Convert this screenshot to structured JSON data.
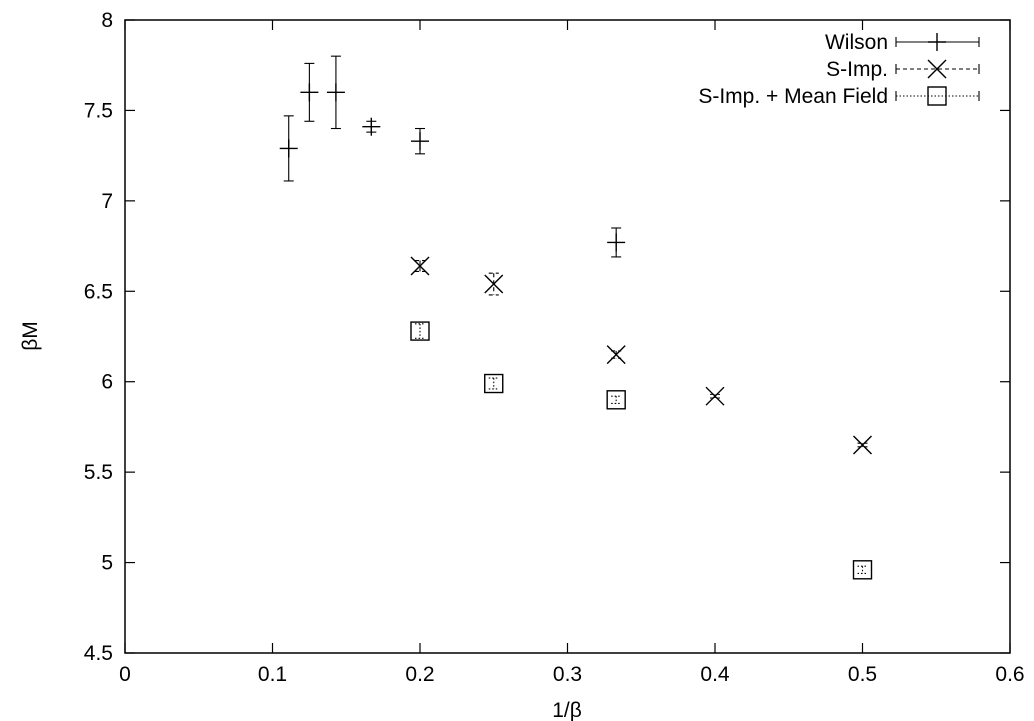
{
  "chart_data": {
    "type": "scatter",
    "title": "",
    "xlabel": "1/β",
    "ylabel": "βM",
    "xlim": [
      0,
      0.6
    ],
    "ylim": [
      4.5,
      8
    ],
    "x_ticks": [
      0,
      0.1,
      0.2,
      0.3,
      0.4,
      0.5,
      0.6
    ],
    "y_ticks": [
      4.5,
      5,
      5.5,
      6,
      6.5,
      7,
      7.5,
      8
    ],
    "x_tick_labels": [
      "0",
      "0.1",
      "0.2",
      "0.3",
      "0.4",
      "0.5",
      "0.6"
    ],
    "y_tick_labels": [
      "4.5",
      "5",
      "5.5",
      "6",
      "6.5",
      "7",
      "7.5",
      "8"
    ],
    "grid": false,
    "legend_position": "top-right",
    "series": [
      {
        "name": "Wilson",
        "marker": "plus",
        "line_style": "solid",
        "points": [
          {
            "x": 0.111,
            "y": 7.29,
            "err": 0.18
          },
          {
            "x": 0.125,
            "y": 7.6,
            "err": 0.16
          },
          {
            "x": 0.143,
            "y": 7.6,
            "err": 0.2
          },
          {
            "x": 0.167,
            "y": 7.41,
            "err": 0.03
          },
          {
            "x": 0.2,
            "y": 7.33,
            "err": 0.07
          },
          {
            "x": 0.333,
            "y": 6.77,
            "err": 0.08
          }
        ]
      },
      {
        "name": "S-Imp.",
        "marker": "cross",
        "line_style": "dashed",
        "points": [
          {
            "x": 0.2,
            "y": 6.64,
            "err": 0.03
          },
          {
            "x": 0.25,
            "y": 6.54,
            "err": 0.06
          },
          {
            "x": 0.333,
            "y": 6.15,
            "err": 0.02
          },
          {
            "x": 0.4,
            "y": 5.92,
            "err": 0.01
          },
          {
            "x": 0.5,
            "y": 5.65,
            "err": 0.01
          }
        ]
      },
      {
        "name": "S-Imp. + Mean Field",
        "marker": "square",
        "line_style": "dotted",
        "points": [
          {
            "x": 0.2,
            "y": 6.28,
            "err": 0.04
          },
          {
            "x": 0.25,
            "y": 5.99,
            "err": 0.03
          },
          {
            "x": 0.333,
            "y": 5.9,
            "err": 0.02
          },
          {
            "x": 0.5,
            "y": 4.96,
            "err": 0.02
          }
        ]
      }
    ]
  }
}
